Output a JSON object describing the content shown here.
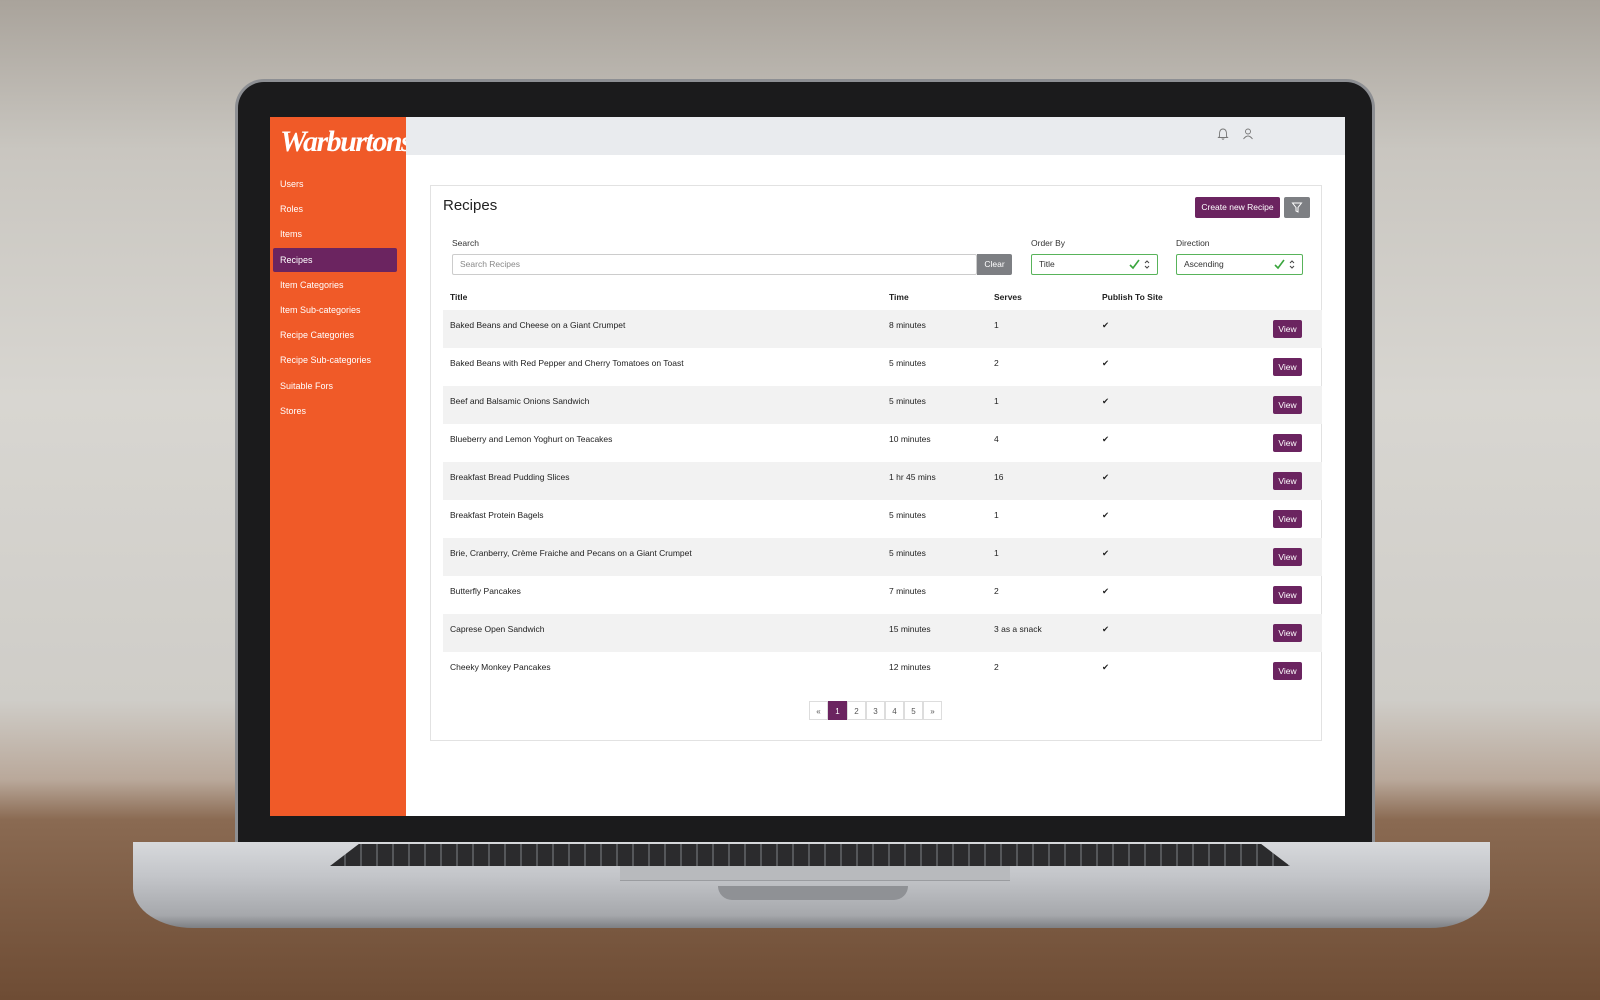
{
  "brand": "Warburtons",
  "nav": [
    {
      "label": "Users"
    },
    {
      "label": "Roles"
    },
    {
      "label": "Items"
    },
    {
      "label": "Recipes",
      "active": true
    },
    {
      "label": "Item Categories"
    },
    {
      "label": "Item Sub-categories"
    },
    {
      "label": "Recipe Categories"
    },
    {
      "label": "Recipe Sub-categories"
    },
    {
      "label": "Suitable Fors"
    },
    {
      "label": "Stores"
    }
  ],
  "page": {
    "title": "Recipes",
    "create_button": "Create new Recipe",
    "search_label": "Search",
    "search_placeholder": "Search Recipes",
    "clear_button": "Clear",
    "order_by_label": "Order By",
    "order_by_value": "Title",
    "direction_label": "Direction",
    "direction_value": "Ascending"
  },
  "table": {
    "columns": [
      "Title",
      "Time",
      "Serves",
      "Publish To Site"
    ],
    "action": "View",
    "rows": [
      [
        "Baked Beans and Cheese on a Giant Crumpet",
        "8 minutes",
        "1",
        "✔"
      ],
      [
        "Baked Beans with Red Pepper and Cherry Tomatoes on Toast",
        "5 minutes",
        "2",
        "✔"
      ],
      [
        "Beef and Balsamic Onions Sandwich",
        "5 minutes",
        "1",
        "✔"
      ],
      [
        "Blueberry and Lemon Yoghurt on Teacakes",
        "10 minutes",
        "4",
        "✔"
      ],
      [
        "Breakfast Bread Pudding Slices",
        "1 hr 45 mins",
        "16",
        "✔"
      ],
      [
        "Breakfast Protein Bagels",
        "5 minutes",
        "1",
        "✔"
      ],
      [
        "Brie, Cranberry, Crème Fraiche and Pecans on a Giant Crumpet",
        "5 minutes",
        "1",
        "✔"
      ],
      [
        "Butterfly Pancakes",
        "7 minutes",
        "2",
        "✔"
      ],
      [
        "Caprese Open Sandwich",
        "15 minutes",
        "3 as a snack",
        "✔"
      ],
      [
        "Cheeky Monkey Pancakes",
        "12 minutes",
        "2",
        "✔"
      ]
    ]
  },
  "pagination": {
    "prev": "«",
    "pages": [
      {
        "label": "1",
        "active": true
      },
      {
        "label": "2"
      },
      {
        "label": "3"
      },
      {
        "label": "4"
      },
      {
        "label": "5"
      }
    ],
    "next": "»"
  }
}
